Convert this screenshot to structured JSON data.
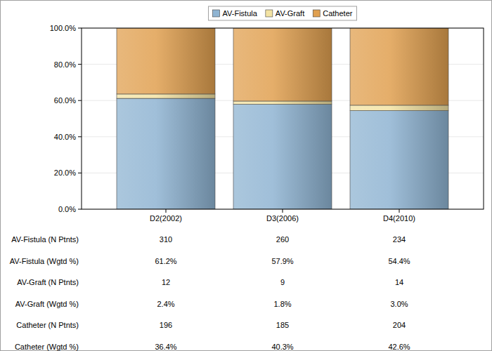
{
  "chart_data": {
    "type": "bar",
    "stacked": true,
    "grid": true,
    "legend": "top",
    "categories": [
      "D2(2002)",
      "D3(2006)",
      "D4(2010)"
    ],
    "series": [
      {
        "name": "AV-Fistula",
        "color": "#8fb4d2",
        "values": [
          61.2,
          57.9,
          54.4
        ]
      },
      {
        "name": "AV-Graft",
        "color": "#f3e3a3",
        "values": [
          2.4,
          1.8,
          3.0
        ]
      },
      {
        "name": "Catheter",
        "color": "#e0a050",
        "values": [
          36.4,
          40.3,
          42.6
        ]
      }
    ],
    "ylim": [
      0,
      100
    ],
    "yticks": [
      {
        "value": 0,
        "label": "0.0%"
      },
      {
        "value": 20,
        "label": "20.0%"
      },
      {
        "value": 40,
        "label": "40.0%"
      },
      {
        "value": 60,
        "label": "60.0%"
      },
      {
        "value": 80,
        "label": "80.0%"
      },
      {
        "value": 100,
        "label": "100.0%"
      }
    ]
  },
  "table": {
    "rows": [
      {
        "label": "AV-Fistula (N Ptnts)",
        "values": [
          310,
          260,
          234
        ]
      },
      {
        "label": "AV-Fistula (Wgtd %)",
        "values": [
          "61.2%",
          "57.9%",
          "54.4%"
        ]
      },
      {
        "label": "AV-Graft (N Ptnts)",
        "values": [
          12,
          9,
          14
        ]
      },
      {
        "label": "AV-Graft (Wgtd %)",
        "values": [
          "2.4%",
          "1.8%",
          "3.0%"
        ]
      },
      {
        "label": "Catheter (N Ptnts)",
        "values": [
          196,
          185,
          204
        ]
      },
      {
        "label": "Catheter (Wgtd %)",
        "values": [
          "36.4%",
          "40.3%",
          "42.6%"
        ]
      }
    ]
  }
}
